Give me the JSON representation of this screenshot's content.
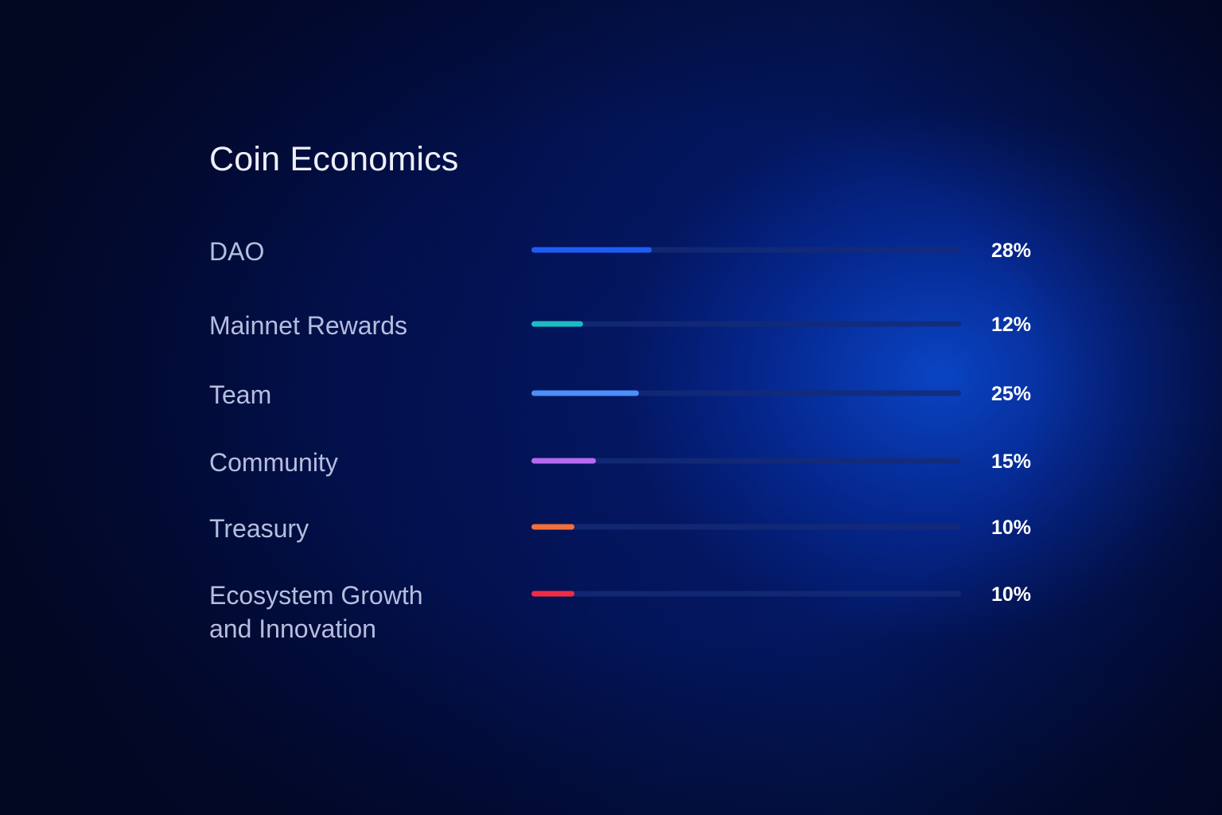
{
  "chart_data": {
    "type": "bar",
    "orientation": "horizontal",
    "title": "Coin Economics",
    "categories": [
      "DAO",
      "Mainnet Rewards",
      "Team",
      "Community",
      "Treasury",
      "Ecosystem Growth and Innovation"
    ],
    "category_lines": [
      [
        "DAO"
      ],
      [
        "Mainnet Rewards"
      ],
      [
        "Team"
      ],
      [
        "Community"
      ],
      [
        "Treasury"
      ],
      [
        "Ecosystem Growth",
        "and Innovation"
      ]
    ],
    "values": [
      28,
      12,
      25,
      15,
      10,
      10
    ],
    "value_labels": [
      "28%",
      "12%",
      "25%",
      "15%",
      "10%",
      "10%"
    ],
    "colors": [
      "#1f5cf5",
      "#1bbcc4",
      "#4d8ef7",
      "#b66af2",
      "#f2703a",
      "#f02c44"
    ],
    "track_color": "#142a75",
    "xlim": [
      0,
      100
    ],
    "grid": false,
    "legend": "none"
  }
}
